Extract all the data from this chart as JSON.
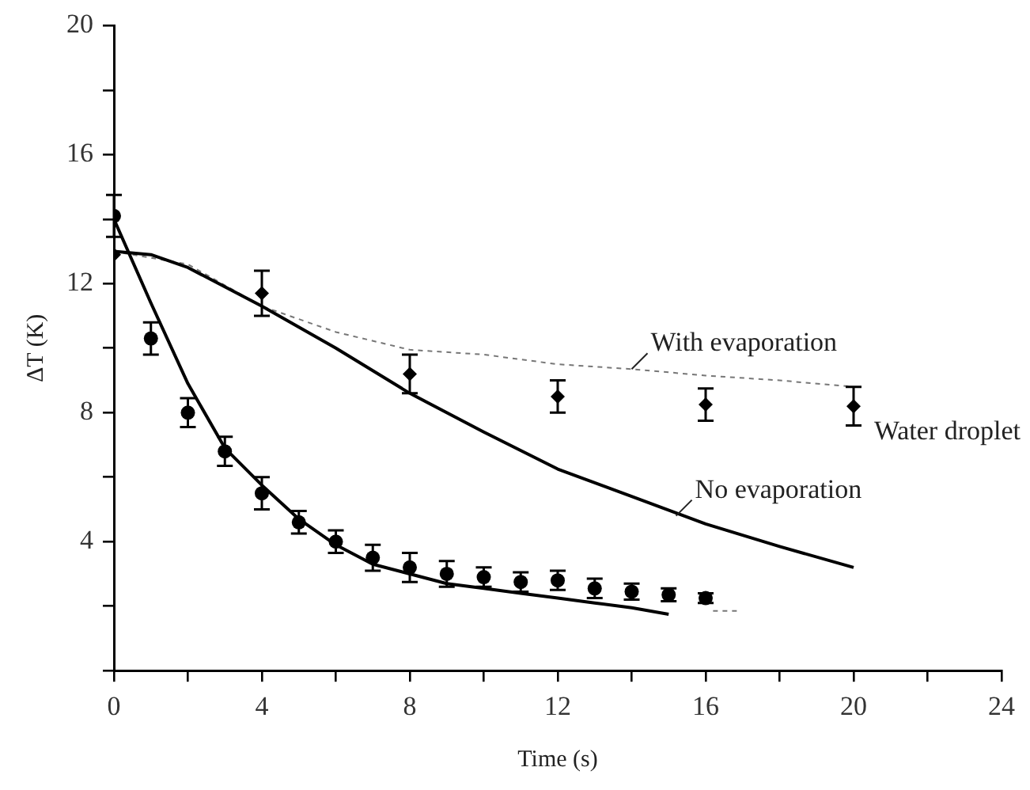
{
  "chart_data": {
    "type": "scatter",
    "xlabel": "Time (s)",
    "ylabel": "ΔT (K)",
    "xlim": [
      0,
      24
    ],
    "xticks": [
      0,
      {
        "value": 2,
        "label": null
      },
      4,
      {
        "value": 6,
        "label": null
      },
      8,
      {
        "value": 10,
        "label": null
      },
      12,
      {
        "value": 14,
        "label": null
      },
      16,
      {
        "value": 18,
        "label": null
      },
      20,
      {
        "value": 22,
        "label": null
      },
      24
    ],
    "ylim": [
      0,
      20
    ],
    "yticks": [
      {
        "value": 0,
        "label": null
      },
      {
        "value": 2,
        "label": null
      },
      4,
      {
        "value": 6,
        "label": null
      },
      8,
      {
        "value": 10,
        "label": null
      },
      12,
      {
        "value": 14,
        "label": null
      },
      16,
      {
        "value": 18,
        "label": null
      },
      20
    ],
    "grid": false,
    "legend": false,
    "series": [
      {
        "type": "line",
        "color": "#000000",
        "marker": "none",
        "line_style": "solid",
        "x": [
          0,
          1,
          2,
          3,
          4,
          5,
          6,
          7,
          8,
          9,
          10,
          11,
          12,
          13,
          14,
          15
        ],
        "values": [
          14.0,
          11.4,
          8.9,
          6.9,
          5.75,
          4.7,
          3.9,
          3.3,
          3.0,
          2.7,
          2.55,
          2.4,
          2.25,
          2.1,
          1.95,
          1.75
        ]
      },
      {
        "type": "line",
        "color": "#000000",
        "marker": "none",
        "line_style": "solid",
        "x": [
          0,
          1,
          2,
          4,
          6,
          8,
          10,
          12,
          14,
          16,
          18,
          20
        ],
        "values": [
          13.0,
          12.9,
          12.5,
          11.3,
          10.0,
          8.6,
          7.4,
          6.25,
          5.4,
          4.55,
          3.85,
          3.2
        ]
      },
      {
        "type": "line",
        "color": "#777777",
        "marker": "none",
        "line_style": "dashed",
        "x": [
          0,
          2,
          4,
          6,
          8,
          10,
          12,
          14,
          16,
          18,
          20
        ],
        "values": [
          13.0,
          12.6,
          11.3,
          10.5,
          9.95,
          9.8,
          9.5,
          9.35,
          9.15,
          9.0,
          8.8
        ]
      },
      {
        "type": "line",
        "color": "#777777",
        "marker": "none",
        "line_style": "dashed",
        "x": [
          16.2,
          16.9
        ],
        "values": [
          1.85,
          1.85
        ]
      },
      {
        "type": "scatter",
        "color": "#000000",
        "marker": "circle",
        "x": [
          0,
          1,
          2,
          3,
          4,
          5,
          6,
          7,
          8,
          9,
          10,
          11,
          12,
          13,
          14,
          15,
          16
        ],
        "values": [
          14.1,
          10.3,
          8.0,
          6.8,
          5.5,
          4.6,
          4.0,
          3.5,
          3.2,
          3.0,
          2.9,
          2.75,
          2.8,
          2.55,
          2.45,
          2.35,
          2.25
        ],
        "errors": [
          0.65,
          0.5,
          0.45,
          0.45,
          0.5,
          0.35,
          0.35,
          0.4,
          0.45,
          0.4,
          0.3,
          0.3,
          0.3,
          0.3,
          0.25,
          0.2,
          0.15
        ]
      },
      {
        "type": "scatter",
        "color": "#000000",
        "marker": "diamond",
        "x": [
          0,
          4,
          8,
          12,
          16,
          20
        ],
        "values": [
          12.9,
          11.7,
          9.2,
          8.5,
          8.25,
          8.2
        ],
        "errors": [
          null,
          0.7,
          0.6,
          0.5,
          0.5,
          0.6
        ]
      }
    ],
    "annotations": [
      {
        "text": "With evaporation",
        "x": 14,
        "y": 9.35
      },
      {
        "text": "No evaporation",
        "x": 15.2,
        "y": 4.8
      },
      "Water droplet"
    ]
  }
}
